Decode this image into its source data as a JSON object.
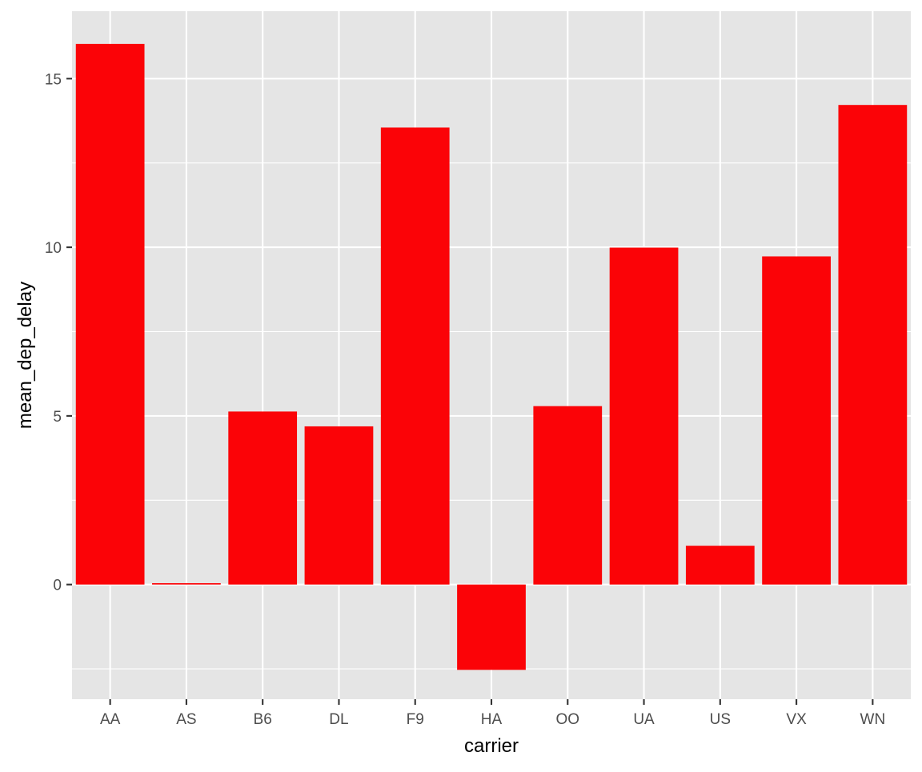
{
  "chart_data": {
    "type": "bar",
    "title": "",
    "xlabel": "carrier",
    "ylabel": "mean_dep_delay",
    "categories": [
      "AA",
      "AS",
      "B6",
      "DL",
      "F9",
      "HA",
      "OO",
      "UA",
      "US",
      "VX",
      "WN"
    ],
    "values": [
      16.03,
      0.04,
      5.13,
      4.69,
      13.55,
      -2.53,
      5.29,
      9.99,
      1.15,
      9.73,
      14.22
    ],
    "ylim": [
      -3.4,
      17.0
    ],
    "yticks": [
      0,
      5,
      10,
      15
    ],
    "ytick_labels": [
      "0",
      "5",
      "10",
      "15"
    ],
    "y_minor_ticks": [
      -2.5,
      2.5,
      7.5,
      12.5
    ],
    "grid": true,
    "legend": "none",
    "colors": {
      "bar": "#fb0307",
      "panel": "#e5e5e5",
      "grid": "#ffffff"
    }
  }
}
